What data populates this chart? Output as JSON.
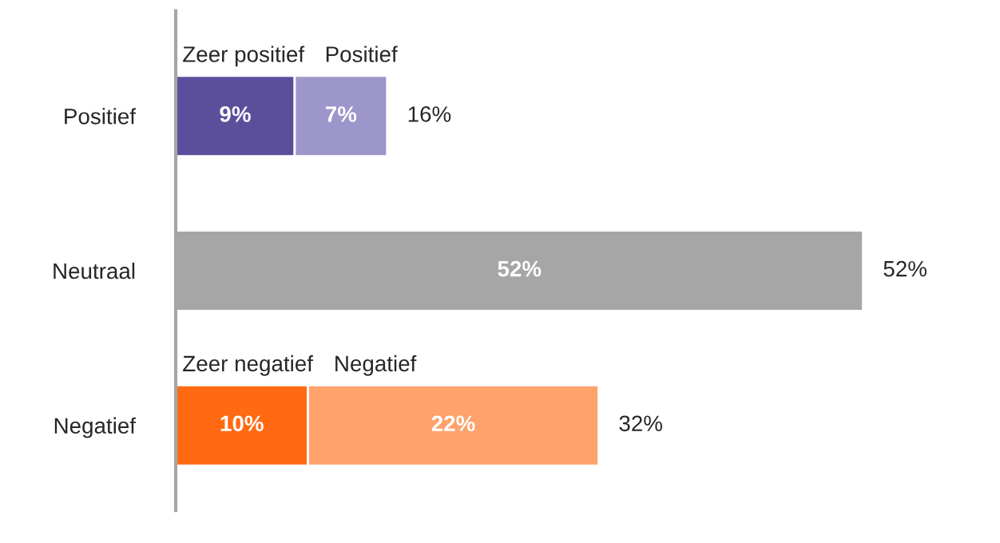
{
  "chart_data": {
    "type": "bar",
    "orientation": "horizontal",
    "stacked": true,
    "categories": [
      "Positief",
      "Neutraal",
      "Negatief"
    ],
    "series": [
      {
        "name": "Zeer positief",
        "color": "#5b4f9b",
        "values": [
          9,
          null,
          null
        ],
        "value_labels": [
          "9%",
          null,
          null
        ]
      },
      {
        "name": "Positief",
        "color": "#9d96cb",
        "values": [
          7,
          null,
          null
        ],
        "value_labels": [
          "7%",
          null,
          null
        ]
      },
      {
        "color": "#a6a6a6",
        "values": [
          null,
          52,
          null
        ],
        "value_labels": [
          null,
          "52%",
          null
        ]
      },
      {
        "name": "Zeer negatief",
        "color": "#ff6a13",
        "values": [
          null,
          null,
          10
        ],
        "value_labels": [
          null,
          null,
          "10%"
        ]
      },
      {
        "name": "Negatief",
        "color": "#ffa26b",
        "values": [
          null,
          null,
          22
        ],
        "value_labels": [
          null,
          null,
          "22%"
        ]
      }
    ],
    "totals": [
      "16%",
      "52%",
      "32%"
    ],
    "legend": false,
    "grid": false
  }
}
